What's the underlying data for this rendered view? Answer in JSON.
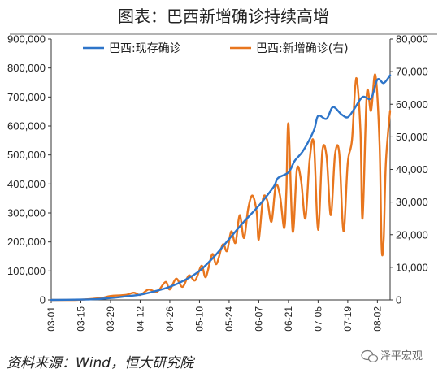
{
  "title": "图表：巴西新增确诊持续高增",
  "source_note": "资料来源：Wind，恒大研究院",
  "watermark": "泽平宏观",
  "colors": {
    "active": "#2e75c9",
    "new": "#e8761e",
    "axis": "#333333",
    "title_rule": "#9a9a9a"
  },
  "chart_data": {
    "type": "line",
    "title": "图表：巴西新增确诊持续高增",
    "legend_position": "top-left",
    "grid": false,
    "x_tick_labels": [
      "03-01",
      "03-15",
      "03-29",
      "04-12",
      "04-26",
      "05-10",
      "05-24",
      "06-07",
      "06-21",
      "07-05",
      "07-19",
      "08-02"
    ],
    "x_range": [
      "03-01",
      "08-08"
    ],
    "ylim_left": [
      0,
      900000
    ],
    "ylim_right": [
      0,
      80000
    ],
    "y_ticks_left": [
      "0",
      "100,000",
      "200,000",
      "300,000",
      "400,000",
      "500,000",
      "600,000",
      "700,000",
      "800,000",
      "900,000"
    ],
    "y_ticks_right": [
      "0",
      "10,000",
      "20,000",
      "30,000",
      "40,000",
      "50,000",
      "60,000",
      "70,000",
      "80,000"
    ],
    "series": [
      {
        "name": "巴西:现存确诊",
        "axis": "left",
        "points": [
          [
            "03-01",
            0
          ],
          [
            "03-15",
            1000
          ],
          [
            "03-22",
            2500
          ],
          [
            "03-29",
            6500
          ],
          [
            "04-05",
            12000
          ],
          [
            "04-12",
            18000
          ],
          [
            "04-19",
            30000
          ],
          [
            "04-26",
            45000
          ],
          [
            "05-03",
            68000
          ],
          [
            "05-10",
            100000
          ],
          [
            "05-17",
            150000
          ],
          [
            "05-24",
            210000
          ],
          [
            "05-31",
            270000
          ],
          [
            "06-07",
            325000
          ],
          [
            "06-14",
            390000
          ],
          [
            "06-16",
            420000
          ],
          [
            "06-21",
            440000
          ],
          [
            "06-24",
            480000
          ],
          [
            "06-28",
            515000
          ],
          [
            "07-03",
            585000
          ],
          [
            "07-05",
            635000
          ],
          [
            "07-09",
            625000
          ],
          [
            "07-12",
            665000
          ],
          [
            "07-16",
            640000
          ],
          [
            "07-19",
            630000
          ],
          [
            "07-22",
            658000
          ],
          [
            "07-26",
            700000
          ],
          [
            "07-30",
            695000
          ],
          [
            "08-02",
            760000
          ],
          [
            "08-05",
            748000
          ],
          [
            "08-08",
            775000
          ]
        ]
      },
      {
        "name": "巴西:新增确诊(右)",
        "axis": "right",
        "points": [
          [
            "03-01",
            0
          ],
          [
            "03-12",
            0
          ],
          [
            "03-20",
            300
          ],
          [
            "03-25",
            600
          ],
          [
            "03-29",
            1200
          ],
          [
            "04-05",
            1500
          ],
          [
            "04-09",
            2200
          ],
          [
            "04-12",
            1500
          ],
          [
            "04-16",
            3200
          ],
          [
            "04-20",
            2500
          ],
          [
            "04-24",
            5500
          ],
          [
            "04-26",
            3200
          ],
          [
            "04-29",
            6500
          ],
          [
            "05-02",
            4000
          ],
          [
            "05-05",
            7500
          ],
          [
            "05-08",
            6000
          ],
          [
            "05-11",
            10500
          ],
          [
            "05-13",
            7000
          ],
          [
            "05-16",
            14000
          ],
          [
            "05-18",
            11000
          ],
          [
            "05-21",
            17000
          ],
          [
            "05-23",
            15000
          ],
          [
            "05-25",
            21000
          ],
          [
            "05-27",
            17500
          ],
          [
            "05-29",
            26000
          ],
          [
            "05-31",
            19000
          ],
          [
            "06-02",
            28000
          ],
          [
            "06-04",
            32000
          ],
          [
            "06-06",
            27000
          ],
          [
            "06-07",
            18500
          ],
          [
            "06-09",
            31000
          ],
          [
            "06-11",
            30500
          ],
          [
            "06-13",
            24000
          ],
          [
            "06-15",
            35000
          ],
          [
            "06-17",
            32000
          ],
          [
            "06-19",
            22000
          ],
          [
            "06-20",
            33000
          ],
          [
            "06-21",
            54000
          ],
          [
            "06-23",
            21000
          ],
          [
            "06-25",
            40000
          ],
          [
            "06-27",
            36500
          ],
          [
            "06-29",
            25000
          ],
          [
            "07-01",
            43000
          ],
          [
            "07-03",
            48000
          ],
          [
            "07-05",
            21500
          ],
          [
            "07-07",
            45500
          ],
          [
            "07-09",
            44000
          ],
          [
            "07-11",
            26000
          ],
          [
            "07-13",
            44500
          ],
          [
            "07-15",
            45000
          ],
          [
            "07-17",
            21000
          ],
          [
            "07-19",
            42000
          ],
          [
            "07-21",
            49000
          ],
          [
            "07-23",
            68000
          ],
          [
            "07-25",
            52000
          ],
          [
            "07-26",
            25000
          ],
          [
            "07-28",
            63000
          ],
          [
            "07-30",
            58000
          ],
          [
            "08-01",
            69000
          ],
          [
            "08-03",
            48000
          ],
          [
            "08-04",
            16000
          ],
          [
            "08-05",
            19000
          ],
          [
            "08-06",
            42000
          ],
          [
            "08-08",
            58000
          ]
        ]
      }
    ]
  }
}
